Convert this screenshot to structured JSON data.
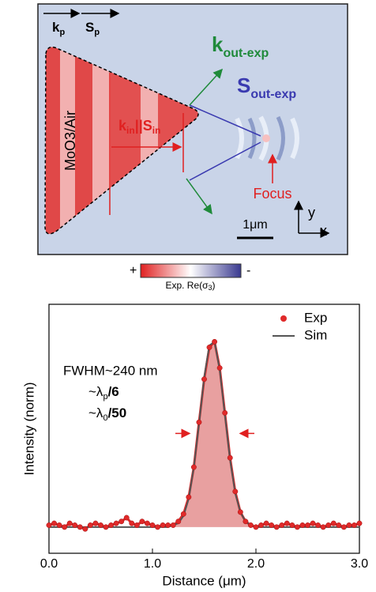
{
  "image_panel": {
    "k_p": {
      "main": "k",
      "sub": "p"
    },
    "s_p": {
      "main": "S",
      "sub": "p"
    },
    "k_out": {
      "main": "k",
      "sub": "out-exp"
    },
    "s_out": {
      "main": "S",
      "sub": "out-exp"
    },
    "material": "MoO3/Air",
    "k_in_s_in": {
      "k": "k",
      "k_sub": "in",
      "mid": "||S",
      "s_sub": "in"
    },
    "focus": "Focus",
    "scale": "1μm",
    "axis_y": "y",
    "axis_x": "x",
    "colorbar": {
      "plus": "+",
      "minus": "-",
      "label": "Exp. Re(σ",
      "label_sub": "3",
      "label_end": ")"
    }
  },
  "chart_data": {
    "type": "line",
    "xlabel": "Distance (μm)",
    "ylabel": "Intensity (norm)",
    "fwhm": "FWHM~240 nm",
    "ratio_p": {
      "pre": "~λ",
      "sub": "p",
      "post": "/6"
    },
    "ratio_0": {
      "pre": "~λ",
      "sub": "0",
      "post": "/50"
    },
    "xlim": [
      0,
      3
    ],
    "ylim": [
      -0.14,
      1.19
    ],
    "xticks": [
      {
        "value": 0,
        "label": "0.0"
      },
      {
        "value": 1,
        "label": "1.0"
      },
      {
        "value": 2,
        "label": "2.0"
      },
      {
        "value": 3,
        "label": "3.0"
      }
    ],
    "legend": "upper right",
    "x": [
      0,
      0.05,
      0.1,
      0.15,
      0.2,
      0.25,
      0.3,
      0.35,
      0.4,
      0.45,
      0.5,
      0.55,
      0.6,
      0.65,
      0.7,
      0.75,
      0.8,
      0.85,
      0.9,
      0.95,
      1,
      1.05,
      1.1,
      1.15,
      1.2,
      1.25,
      1.3,
      1.35,
      1.4,
      1.45,
      1.5,
      1.55,
      1.6,
      1.65,
      1.7,
      1.75,
      1.8,
      1.85,
      1.9,
      1.95,
      2,
      2.05,
      2.1,
      2.15,
      2.2,
      2.25,
      2.3,
      2.35,
      2.4,
      2.45,
      2.5,
      2.55,
      2.6,
      2.65,
      2.7,
      2.75,
      2.8,
      2.85,
      2.9,
      2.95,
      3
    ],
    "series": [
      {
        "name": "Exp",
        "color": "#e02a2a",
        "fill": "#e8a0a0",
        "values": [
          0.01,
          0.02,
          0.01,
          0,
          0.02,
          0.01,
          0,
          -0.01,
          0.01,
          0.02,
          0.01,
          0,
          0.01,
          0.02,
          0.03,
          0.05,
          0.02,
          0.01,
          0.03,
          0.02,
          0.01,
          0,
          0.01,
          0.01,
          0.01,
          0.03,
          0.07,
          0.16,
          0.32,
          0.56,
          0.79,
          0.96,
          0.99,
          0.85,
          0.61,
          0.37,
          0.19,
          0.08,
          0.03,
          0.01,
          0,
          0.01,
          0.02,
          0.01,
          0,
          0.01,
          0.02,
          0.01,
          0,
          0.01,
          0.01,
          0.02,
          0.01,
          0,
          0.01,
          0.02,
          0.01,
          0,
          0.01,
          0.01,
          0.02
        ]
      },
      {
        "name": "Sim",
        "color": "#555555",
        "values": [
          0,
          0,
          0,
          0,
          0,
          0,
          0,
          0,
          0,
          0,
          0,
          0,
          0,
          0,
          0,
          0,
          0,
          0,
          0,
          0,
          0,
          0,
          0,
          0,
          0.01,
          0.02,
          0.06,
          0.15,
          0.32,
          0.55,
          0.8,
          0.97,
          0.99,
          0.84,
          0.6,
          0.36,
          0.18,
          0.08,
          0.03,
          0.01,
          0,
          0,
          0,
          0,
          0,
          0,
          0,
          0,
          0,
          0,
          0,
          0,
          0,
          0,
          0,
          0,
          0,
          0,
          0,
          0,
          0
        ]
      }
    ],
    "fill_range": [
      1.2,
      2
    ]
  }
}
